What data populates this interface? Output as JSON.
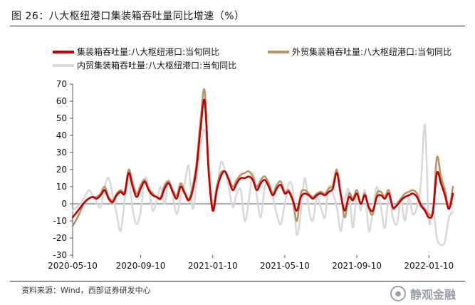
{
  "figure": {
    "title": "图 26：八大枢纽港口集装箱吞吐量同比增速（%）",
    "source": "资料来源：Wind，西部证券研发中心",
    "watermark": "静观金融"
  },
  "chart_data": {
    "type": "line",
    "title": "图 26：八大枢纽港口集装箱吞吐量同比增速（%）",
    "xlabel": "",
    "ylabel": "",
    "ylim": [
      -30,
      70
    ],
    "yticks": [
      -30,
      -20,
      -10,
      0,
      10,
      20,
      30,
      40,
      50,
      60,
      70
    ],
    "x_ticks": [
      "2020-05-10",
      "2020-09-10",
      "2021-01-10",
      "2021-05-10",
      "2021-09-10",
      "2022-01-10"
    ],
    "x_tick_positions": [
      0,
      17,
      35,
      53,
      71,
      89
    ],
    "legend_position": "top",
    "series": [
      {
        "name": "集装箱吞吐量:八大枢纽港口:当旬同比",
        "color": "#c00000",
        "values": [
          -8,
          -5,
          -2,
          1,
          3,
          4,
          3,
          5,
          8,
          3,
          1,
          5,
          7,
          6,
          18,
          10,
          4,
          9,
          13,
          8,
          5,
          4,
          3,
          9,
          12,
          7,
          3,
          10,
          6,
          2,
          8,
          22,
          45,
          60,
          18,
          -4,
          8,
          16,
          19,
          14,
          8,
          12,
          15,
          15,
          16,
          14,
          8,
          12,
          14,
          10,
          5,
          9,
          11,
          6,
          7,
          2,
          -4,
          4,
          6,
          5,
          3,
          5,
          6,
          5,
          7,
          9,
          18,
          5,
          -4,
          4,
          2,
          6,
          0,
          5,
          -2,
          -4,
          4,
          5,
          3,
          6,
          -2,
          -1,
          2,
          4,
          5,
          6,
          4,
          -1,
          -4,
          -8,
          -5,
          18,
          12,
          5,
          -3,
          6
        ]
      },
      {
        "name": "外贸集装箱吞吐量:八大枢纽港口:当旬同比",
        "color": "#b8946a",
        "values": [
          -13,
          -9,
          -4,
          1,
          3,
          4,
          4,
          6,
          10,
          4,
          2,
          6,
          8,
          7,
          20,
          12,
          6,
          11,
          14,
          9,
          6,
          4,
          4,
          11,
          13,
          8,
          5,
          12,
          7,
          3,
          10,
          25,
          50,
          66,
          20,
          -2,
          10,
          18,
          19,
          15,
          10,
          14,
          17,
          18,
          19,
          16,
          10,
          14,
          16,
          12,
          6,
          11,
          13,
          7,
          8,
          2,
          -10,
          6,
          8,
          6,
          4,
          6,
          7,
          6,
          9,
          11,
          20,
          6,
          -8,
          6,
          3,
          8,
          0,
          6,
          -3,
          -6,
          6,
          7,
          4,
          8,
          -3,
          0,
          3,
          6,
          7,
          8,
          6,
          0,
          -3,
          -6,
          -4,
          27,
          16,
          8,
          -2,
          10
        ]
      },
      {
        "name": "内贸集装箱吞吐量:八大枢纽港口:当旬同比",
        "color": "#d9d9d9",
        "values": [
          -4,
          -2,
          0,
          4,
          8,
          5,
          1,
          -2,
          10,
          15,
          5,
          -6,
          -16,
          2,
          15,
          -3,
          -12,
          -4,
          15,
          10,
          -4,
          2,
          10,
          0,
          14,
          5,
          -6,
          4,
          12,
          22,
          -3,
          15,
          35,
          43,
          25,
          -2,
          5,
          24,
          20,
          10,
          -2,
          6,
          8,
          -10,
          2,
          18,
          5,
          -8,
          10,
          12,
          4,
          -6,
          -12,
          0,
          12,
          8,
          -18,
          -5,
          15,
          -3,
          -10,
          4,
          -2,
          -8,
          10,
          6,
          -2,
          -16,
          2,
          8,
          -14,
          6,
          -4,
          8,
          -16,
          -4,
          10,
          -2,
          -14,
          4,
          -8,
          -12,
          2,
          -10,
          4,
          -6,
          -2,
          12,
          46,
          -10,
          -2,
          -20,
          -24,
          -22,
          -8,
          -5
        ]
      }
    ]
  }
}
